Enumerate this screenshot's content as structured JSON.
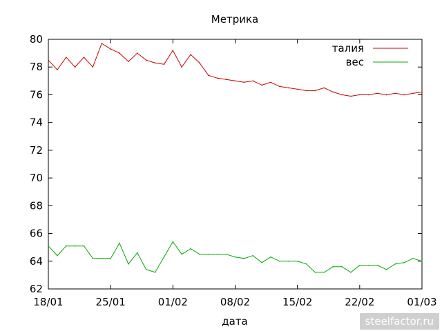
{
  "chart_data": {
    "type": "line",
    "title": "Метрика",
    "xlabel": "дата",
    "ylabel": "",
    "ylim": [
      62,
      80
    ],
    "yticks": [
      62,
      64,
      66,
      68,
      70,
      72,
      74,
      76,
      78,
      80
    ],
    "x_tick_labels": [
      "18/01",
      "25/01",
      "01/02",
      "08/02",
      "15/02",
      "22/02",
      "01/03"
    ],
    "x": [
      "18/01",
      "19/01",
      "20/01",
      "21/01",
      "22/01",
      "23/01",
      "24/01",
      "25/01",
      "26/01",
      "27/01",
      "28/01",
      "29/01",
      "30/01",
      "31/01",
      "01/02",
      "02/02",
      "03/02",
      "04/02",
      "05/02",
      "06/02",
      "07/02",
      "08/02",
      "09/02",
      "10/02",
      "11/02",
      "12/02",
      "13/02",
      "14/02",
      "15/02",
      "16/02",
      "17/02",
      "18/02",
      "19/02",
      "20/02",
      "21/02",
      "22/02",
      "23/02",
      "24/02",
      "25/02",
      "26/02",
      "27/02",
      "28/02",
      "01/03"
    ],
    "grid": false,
    "legend_position": "top-right",
    "series": [
      {
        "name": "талия",
        "color": "#cc0000",
        "values": [
          78.5,
          77.8,
          78.7,
          78.0,
          78.7,
          78.0,
          79.7,
          79.3,
          79.0,
          78.4,
          79.0,
          78.5,
          78.3,
          78.2,
          79.2,
          78.0,
          78.9,
          78.3,
          77.4,
          77.2,
          77.1,
          77.0,
          76.9,
          77.0,
          76.7,
          76.9,
          76.6,
          76.5,
          76.4,
          76.3,
          76.3,
          76.5,
          76.2,
          76.0,
          75.9,
          76.0,
          76.0,
          76.1,
          76.0,
          76.1,
          76.0,
          76.1,
          76.2
        ]
      },
      {
        "name": "вес",
        "color": "#00aa00",
        "values": [
          65.1,
          64.4,
          65.1,
          65.1,
          65.1,
          64.2,
          64.2,
          64.2,
          65.3,
          63.8,
          64.6,
          63.4,
          63.2,
          64.3,
          65.4,
          64.5,
          64.9,
          64.5,
          64.5,
          64.5,
          64.5,
          64.3,
          64.2,
          64.4,
          63.9,
          64.3,
          64.0,
          64.0,
          64.0,
          63.8,
          63.2,
          63.2,
          63.6,
          63.6,
          63.2,
          63.7,
          63.7,
          63.7,
          63.4,
          63.8,
          63.9,
          64.2,
          64.0
        ]
      }
    ]
  },
  "watermark": "steelfactor.ru"
}
